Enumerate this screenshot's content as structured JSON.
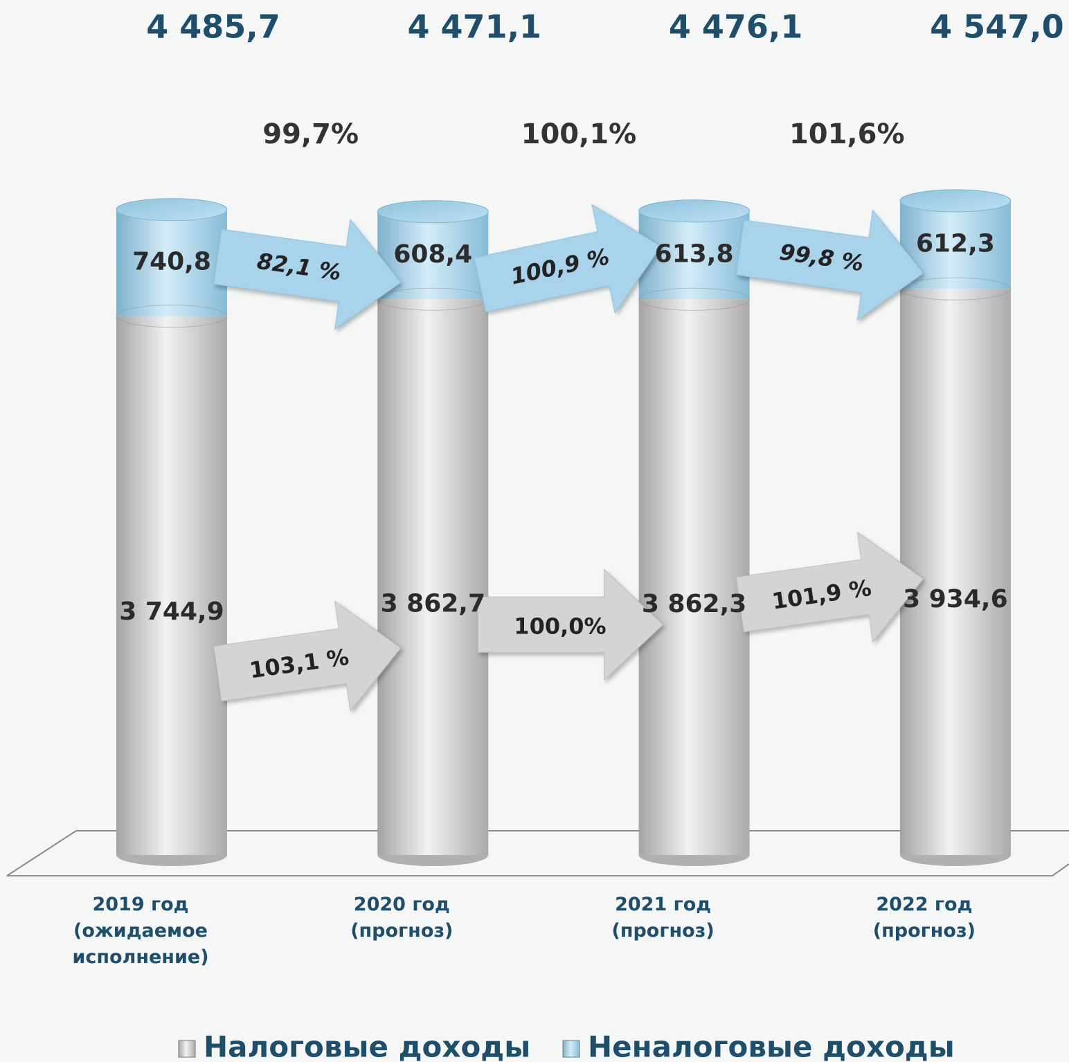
{
  "chart_data": {
    "type": "bar",
    "stacked": true,
    "categories": [
      "2019 год (ожидаемое исполнение)",
      "2020 год (прогноз)",
      "2021 год (прогноз)",
      "2022 год (прогноз)"
    ],
    "series": [
      {
        "name": "Налоговые доходы",
        "color": "#d2d2d2",
        "values": [
          3744.9,
          3862.7,
          3862.3,
          3934.6
        ],
        "value_labels": [
          "3 744,9",
          "3 862,7",
          "3 862,3",
          "3 934,6"
        ],
        "growth": {
          "values": [
            103.1,
            100.0,
            101.9
          ],
          "value_labels": [
            "103,1 %",
            "100,0%",
            "101,9 %"
          ]
        }
      },
      {
        "name": "Неналоговые доходы",
        "color": "#a9d3ea",
        "values": [
          740.8,
          608.4,
          613.8,
          612.3
        ],
        "value_labels": [
          "740,8",
          "608,4",
          "613,8",
          "612,3"
        ],
        "growth": {
          "values": [
            82.1,
            100.9,
            99.8
          ],
          "value_labels": [
            "82,1 %",
            "100,9 %",
            "99,8 %"
          ]
        }
      }
    ],
    "totals": {
      "values": [
        4485.7,
        4471.1,
        4476.1,
        4547.0
      ],
      "value_labels": [
        "4 485,7",
        "4 471,1",
        "4 476,1",
        "4 547,0"
      ]
    },
    "total_growth": {
      "values": [
        99.7,
        100.1,
        101.6
      ],
      "value_labels": [
        "99,7%",
        "100,1%",
        "101,6%"
      ]
    }
  }
}
